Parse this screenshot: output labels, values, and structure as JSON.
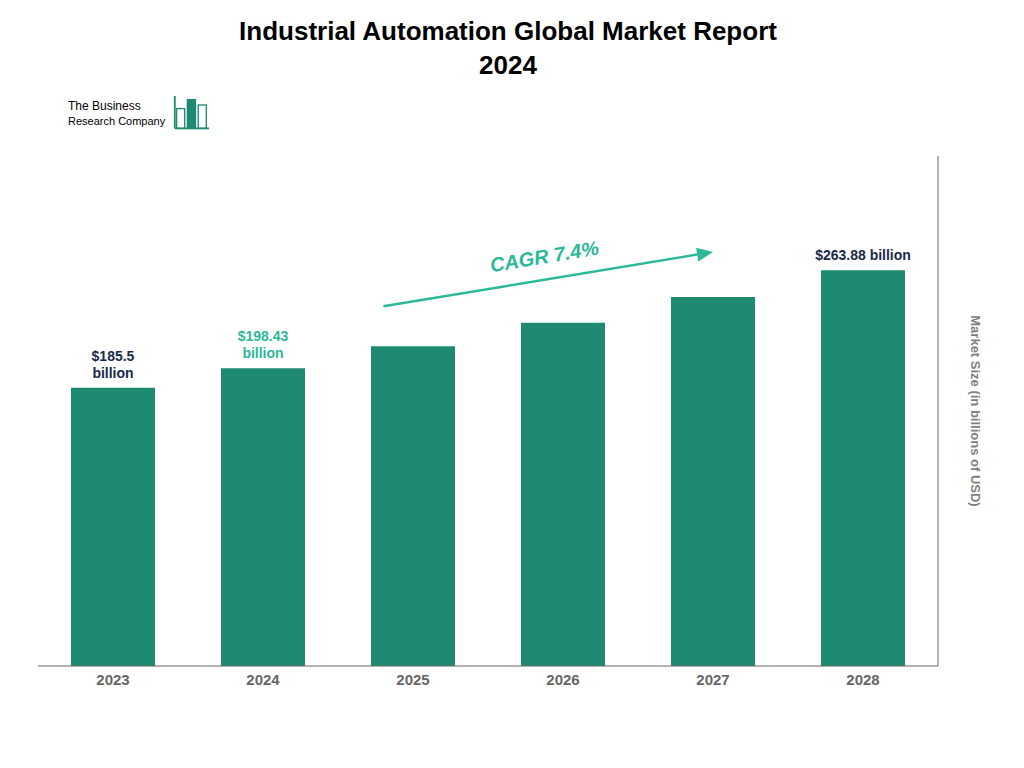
{
  "chart_data": {
    "type": "bar",
    "title": "Industrial Automation Global Market Report",
    "subtitle": "2024",
    "ylabel": "Market Size (in billions of USD)",
    "categories": [
      "2023",
      "2024",
      "2025",
      "2026",
      "2027",
      "2028"
    ],
    "values": [
      185.5,
      198.43,
      213.1,
      228.9,
      246.0,
      263.88
    ],
    "color": "#1e8a72",
    "ylim": [
      0,
      340
    ],
    "tick_labels": "x",
    "grid": false,
    "annotations": [
      {
        "text": "$185.5\nbillion",
        "category": "2023",
        "color": "#1a2a4a"
      },
      {
        "text": "$198.43\nbillion",
        "category": "2024",
        "color": "#2db899"
      },
      {
        "text": "$263.88 billion",
        "category": "2028",
        "color": "#1a2a4a"
      },
      {
        "text": "CAGR 7.4%",
        "from": "2025",
        "to": "2027",
        "color": "#2db899"
      },
      {
        "text": "The Business"
      },
      {
        "text": "Research Company"
      }
    ]
  }
}
